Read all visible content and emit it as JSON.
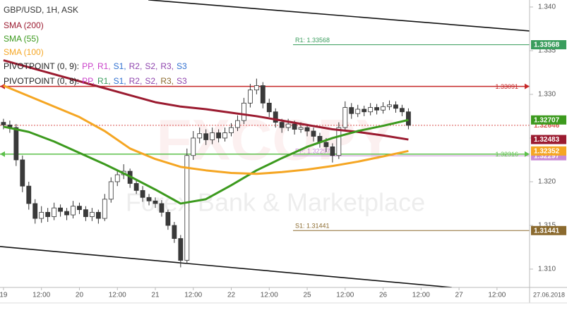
{
  "chart_data": {
    "type": "candlestick",
    "title": "GBP/USD, 1H, ASK",
    "x": [
      0,
      2,
      4,
      6,
      8,
      10,
      12,
      14,
      16,
      18,
      20,
      22,
      24,
      26,
      28,
      30,
      32,
      34,
      36,
      38,
      40,
      42,
      44,
      46,
      48,
      50,
      52,
      54,
      56,
      58,
      60,
      62,
      64,
      66,
      68,
      70,
      72,
      74,
      76,
      78,
      80,
      82,
      84,
      86,
      88,
      90,
      92,
      94,
      96,
      98,
      100,
      102,
      104,
      106,
      108,
      110,
      112,
      114,
      116,
      118,
      120,
      122,
      124,
      126,
      128
    ],
    "ohlc": [
      [
        1.3268,
        1.3272,
        1.326,
        1.3265
      ],
      [
        1.3265,
        1.327,
        1.3256,
        1.3262
      ],
      [
        1.3262,
        1.3266,
        1.3218,
        1.3225
      ],
      [
        1.3225,
        1.323,
        1.3188,
        1.3195
      ],
      [
        1.3195,
        1.32,
        1.3168,
        1.3175
      ],
      [
        1.3175,
        1.318,
        1.3152,
        1.3158
      ],
      [
        1.3158,
        1.3172,
        1.3153,
        1.3165
      ],
      [
        1.3165,
        1.317,
        1.3154,
        1.316
      ],
      [
        1.316,
        1.3176,
        1.3156,
        1.317
      ],
      [
        1.317,
        1.3174,
        1.316,
        1.3166
      ],
      [
        1.3166,
        1.317,
        1.3156,
        1.3162
      ],
      [
        1.3162,
        1.3178,
        1.3158,
        1.3172
      ],
      [
        1.3172,
        1.3176,
        1.3163,
        1.3168
      ],
      [
        1.3168,
        1.3172,
        1.3155,
        1.316
      ],
      [
        1.316,
        1.317,
        1.3155,
        1.3165
      ],
      [
        1.3165,
        1.3168,
        1.3152,
        1.3158
      ],
      [
        1.3158,
        1.3186,
        1.3155,
        1.318
      ],
      [
        1.318,
        1.3205,
        1.3176,
        1.32
      ],
      [
        1.32,
        1.3214,
        1.3195,
        1.3208
      ],
      [
        1.3208,
        1.322,
        1.3203,
        1.3212
      ],
      [
        1.3212,
        1.3215,
        1.3193,
        1.3198
      ],
      [
        1.3198,
        1.3202,
        1.3186,
        1.319
      ],
      [
        1.319,
        1.3195,
        1.3177,
        1.3182
      ],
      [
        1.3182,
        1.3186,
        1.3173,
        1.3178
      ],
      [
        1.3178,
        1.3182,
        1.317,
        1.3175
      ],
      [
        1.3175,
        1.3179,
        1.316,
        1.3165
      ],
      [
        1.3165,
        1.3168,
        1.3145,
        1.315
      ],
      [
        1.315,
        1.3154,
        1.313,
        1.3135
      ],
      [
        1.3135,
        1.3139,
        1.3102,
        1.311
      ],
      [
        1.311,
        1.3238,
        1.3106,
        1.323
      ],
      [
        1.323,
        1.3258,
        1.3225,
        1.325
      ],
      [
        1.325,
        1.3262,
        1.3244,
        1.3255
      ],
      [
        1.3255,
        1.326,
        1.3242,
        1.3248
      ],
      [
        1.3248,
        1.3262,
        1.3243,
        1.3256
      ],
      [
        1.3256,
        1.326,
        1.3245,
        1.325
      ],
      [
        1.325,
        1.3262,
        1.3246,
        1.3256
      ],
      [
        1.3256,
        1.3267,
        1.3252,
        1.3262
      ],
      [
        1.3262,
        1.3276,
        1.3258,
        1.327
      ],
      [
        1.327,
        1.3296,
        1.3266,
        1.329
      ],
      [
        1.329,
        1.3312,
        1.3285,
        1.3305
      ],
      [
        1.3305,
        1.3318,
        1.33,
        1.331
      ],
      [
        1.331,
        1.3314,
        1.3284,
        1.329
      ],
      [
        1.329,
        1.3295,
        1.3274,
        1.328
      ],
      [
        1.328,
        1.3284,
        1.3262,
        1.3268
      ],
      [
        1.3268,
        1.3272,
        1.3256,
        1.3262
      ],
      [
        1.3262,
        1.3272,
        1.3258,
        1.3266
      ],
      [
        1.3266,
        1.327,
        1.3254,
        1.326
      ],
      [
        1.326,
        1.3268,
        1.3256,
        1.3262
      ],
      [
        1.3262,
        1.3266,
        1.3252,
        1.3258
      ],
      [
        1.3258,
        1.3262,
        1.3246,
        1.3252
      ],
      [
        1.3252,
        1.3256,
        1.3239,
        1.3245
      ],
      [
        1.3245,
        1.325,
        1.3234,
        1.324
      ],
      [
        1.324,
        1.3244,
        1.3222,
        1.323
      ],
      [
        1.323,
        1.3268,
        1.3226,
        1.3262
      ],
      [
        1.3262,
        1.3292,
        1.3258,
        1.3285
      ],
      [
        1.3285,
        1.329,
        1.3272,
        1.3278
      ],
      [
        1.3278,
        1.3288,
        1.3274,
        1.3283
      ],
      [
        1.3283,
        1.3287,
        1.3275,
        1.328
      ],
      [
        1.328,
        1.329,
        1.3276,
        1.3285
      ],
      [
        1.3285,
        1.3289,
        1.3277,
        1.3282
      ],
      [
        1.3282,
        1.3291,
        1.3278,
        1.3286
      ],
      [
        1.3286,
        1.3293,
        1.3282,
        1.3288
      ],
      [
        1.3288,
        1.3292,
        1.3279,
        1.3284
      ],
      [
        1.3284,
        1.3288,
        1.3275,
        1.328
      ],
      [
        1.328,
        1.3284,
        1.326,
        1.32646
      ]
    ],
    "up_color": "#ffffff",
    "down_color": "#3a3a3a",
    "indicators": [
      {
        "name": "SMA (200)",
        "color": "#9b1b30",
        "x": [
          0,
          8,
          16,
          24,
          32,
          40,
          48,
          56,
          64,
          72,
          80,
          88,
          96,
          104,
          112,
          120,
          128
        ],
        "values": [
          1.3339,
          1.3331,
          1.3323,
          1.3315,
          1.3307,
          1.3299,
          1.3291,
          1.3286,
          1.3283,
          1.3279,
          1.3275,
          1.327,
          1.3265,
          1.326,
          1.3257,
          1.3253,
          1.32483
        ]
      },
      {
        "name": "SMA (55)",
        "color": "#3c9a1e",
        "x": [
          0,
          8,
          16,
          24,
          32,
          40,
          48,
          56,
          64,
          72,
          80,
          88,
          96,
          104,
          112,
          120,
          128
        ],
        "values": [
          1.3263,
          1.3257,
          1.3246,
          1.3233,
          1.322,
          1.3206,
          1.3191,
          1.3175,
          1.318,
          1.3196,
          1.3213,
          1.3227,
          1.324,
          1.325,
          1.3258,
          1.3264,
          1.32707
        ]
      },
      {
        "name": "SMA (100)",
        "color": "#f5a623",
        "x": [
          0,
          8,
          16,
          24,
          32,
          40,
          48,
          56,
          64,
          72,
          80,
          88,
          96,
          104,
          112,
          120,
          128
        ],
        "values": [
          1.331,
          1.3298,
          1.3286,
          1.3274,
          1.3258,
          1.3238,
          1.3226,
          1.3217,
          1.3213,
          1.321,
          1.3209,
          1.3211,
          1.3214,
          1.3218,
          1.3223,
          1.3229,
          1.32352
        ]
      }
    ],
    "pivot_legends": [
      {
        "name": "PIVOTPOINT (0, 9):",
        "items": [
          {
            "text": "PP,",
            "color": "#c93fc9"
          },
          {
            "text": "R1,",
            "color": "#c93fc9"
          },
          {
            "text": "S1,",
            "color": "#2f6fd0"
          },
          {
            "text": "R2,",
            "color": "#8e44ad"
          },
          {
            "text": "S2,",
            "color": "#8e44ad"
          },
          {
            "text": "R3,",
            "color": "#8e44ad"
          },
          {
            "text": "S3",
            "color": "#2f6fd0"
          }
        ]
      },
      {
        "name": "PIVOTPOINT (0, 8):",
        "items": [
          {
            "text": "PP,",
            "color": "#c93fc9"
          },
          {
            "text": "R1,",
            "color": "#3a9d5d"
          },
          {
            "text": "S1,",
            "color": "#2f6fd0"
          },
          {
            "text": "R2,",
            "color": "#8e44ad"
          },
          {
            "text": "S2,",
            "color": "#8e44ad"
          },
          {
            "text": "R3,",
            "color": "#8b6a2e"
          },
          {
            "text": "S3",
            "color": "#8e44ad"
          }
        ]
      }
    ],
    "levels": [
      {
        "name": "R1: 1.33568",
        "value": 1.33568,
        "color": "#3a9d5d"
      },
      {
        "name": "PP: 1.32297",
        "value": 1.32297,
        "color": "#c98bd6"
      },
      {
        "name": "S1: 1.31441",
        "value": 1.31441,
        "color": "#8b6a2e"
      }
    ],
    "hlines": [
      {
        "value": 1.33091,
        "color": "#c62828"
      },
      {
        "value": 1.32316,
        "color": "#5cc04a"
      }
    ],
    "trendlines": [
      {
        "x": [
          45.8,
          166.3
        ],
        "y": [
          1.34081,
          1.33726
        ]
      },
      {
        "x": [
          -1.1,
          141.7
        ],
        "y": [
          1.31258,
          1.3079
        ]
      }
    ],
    "watermark": [
      "FXCOPY",
      "Forex Bank & Marketplace"
    ],
    "xlim": [
      -1.1,
      166.3
    ],
    "ylim": [
      1.3079,
      1.3408
    ],
    "xticks": [
      {
        "value": 0,
        "label": "19"
      },
      {
        "value": 12,
        "label": "12:00"
      },
      {
        "value": 24,
        "label": "20"
      },
      {
        "value": 36,
        "label": "12:00"
      },
      {
        "value": 48,
        "label": "21"
      },
      {
        "value": 60,
        "label": "12:00"
      },
      {
        "value": 72,
        "label": "22"
      },
      {
        "value": 84,
        "label": "12:00"
      },
      {
        "value": 96,
        "label": "25"
      },
      {
        "value": 108,
        "label": "12:00"
      },
      {
        "value": 120,
        "label": "26"
      },
      {
        "value": 132,
        "label": "12:00"
      },
      {
        "value": 144,
        "label": "27"
      },
      {
        "value": 156,
        "label": "12:00"
      }
    ],
    "date_label": "27.06.2018",
    "yticks": [
      {
        "value": 1.31,
        "label": "1.310"
      },
      {
        "value": 1.315,
        "label": "1.315"
      },
      {
        "value": 1.32,
        "label": "1.320"
      },
      {
        "value": 1.325,
        "label": "1.325"
      },
      {
        "value": 1.33,
        "label": "1.330"
      },
      {
        "value": 1.335,
        "label": "1.335"
      },
      {
        "value": 1.34,
        "label": "1.340"
      }
    ],
    "grid": false
  }
}
